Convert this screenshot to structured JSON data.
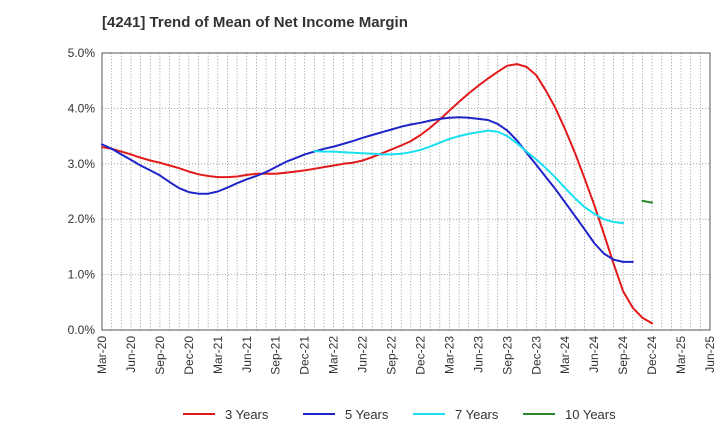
{
  "title": "[4241]  Trend of Mean of Net Income Margin",
  "chart_data": {
    "type": "line",
    "title": "[4241]  Trend of Mean of Net Income Margin",
    "xlabel": "",
    "ylabel": "",
    "ylim": [
      0,
      5
    ],
    "y_ticks": [
      "0.0%",
      "1.0%",
      "2.0%",
      "3.0%",
      "4.0%",
      "5.0%"
    ],
    "x_ticks": [
      "Mar-20",
      "Jun-20",
      "Sep-20",
      "Dec-20",
      "Mar-21",
      "Jun-21",
      "Sep-21",
      "Dec-21",
      "Mar-22",
      "Jun-22",
      "Sep-22",
      "Dec-22",
      "Mar-23",
      "Jun-23",
      "Sep-23",
      "Dec-23",
      "Mar-24",
      "Jun-24",
      "Sep-24",
      "Dec-24",
      "Mar-25",
      "Jun-25"
    ],
    "grid": true,
    "legend_position": "bottom",
    "series": [
      {
        "name": "3 Years",
        "color": "#e31a1c",
        "start_index": 0,
        "values": [
          3.3,
          3.27,
          3.22,
          3.17,
          3.11,
          3.06,
          3.02,
          2.97,
          2.92,
          2.86,
          2.81,
          2.78,
          2.76,
          2.76,
          2.77,
          2.8,
          2.82,
          2.82,
          2.82,
          2.84,
          2.86,
          2.88,
          2.91,
          2.94,
          2.97,
          3.0,
          3.02,
          3.06,
          3.12,
          3.19,
          3.26,
          3.33,
          3.41,
          3.52,
          3.65,
          3.8,
          3.96,
          4.12,
          4.27,
          4.41,
          4.54,
          4.66,
          4.77,
          4.8,
          4.75,
          4.6,
          4.32,
          4.0,
          3.62,
          3.2,
          2.74,
          2.26,
          1.74,
          1.2,
          0.7,
          0.4,
          0.22,
          0.12
        ]
      },
      {
        "name": "5 Years",
        "color": "#1f24c8",
        "start_index": 0,
        "values": [
          3.35,
          3.27,
          3.17,
          3.07,
          2.97,
          2.88,
          2.79,
          2.67,
          2.56,
          2.49,
          2.46,
          2.46,
          2.5,
          2.57,
          2.65,
          2.72,
          2.78,
          2.85,
          2.94,
          3.03,
          3.1,
          3.17,
          3.22,
          3.27,
          3.31,
          3.36,
          3.41,
          3.47,
          3.52,
          3.57,
          3.62,
          3.67,
          3.71,
          3.74,
          3.78,
          3.81,
          3.83,
          3.84,
          3.83,
          3.81,
          3.79,
          3.72,
          3.6,
          3.42,
          3.2,
          2.98,
          2.76,
          2.54,
          2.3,
          2.06,
          1.82,
          1.57,
          1.38,
          1.27,
          1.23,
          1.23
        ]
      },
      {
        "name": "7 Years",
        "color": "#19e0f0",
        "start_index": 22,
        "values": [
          3.23,
          3.22,
          3.22,
          3.21,
          3.2,
          3.19,
          3.18,
          3.17,
          3.17,
          3.18,
          3.21,
          3.25,
          3.31,
          3.38,
          3.45,
          3.5,
          3.54,
          3.57,
          3.6,
          3.58,
          3.5,
          3.37,
          3.22,
          3.08,
          2.92,
          2.75,
          2.56,
          2.38,
          2.22,
          2.1,
          2.0,
          1.95,
          1.93
        ]
      },
      {
        "name": "10 Years",
        "color": "#2a8a2a",
        "start_index": 56,
        "values": [
          2.33,
          2.3
        ]
      }
    ]
  }
}
